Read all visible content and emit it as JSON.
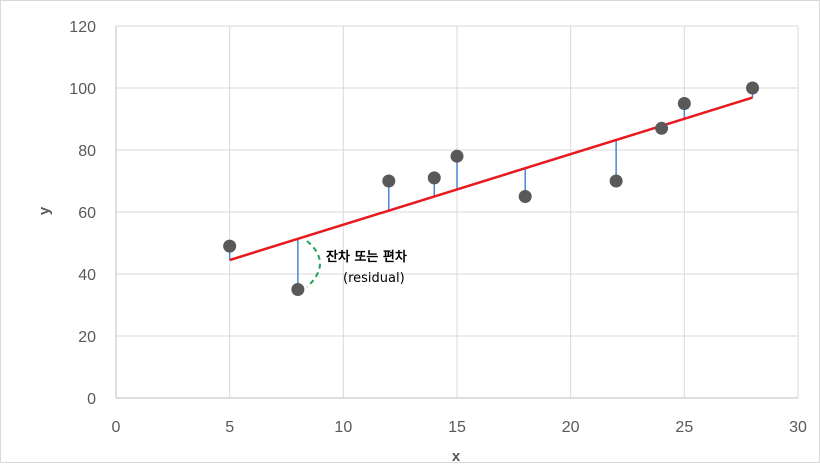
{
  "chart_data": {
    "type": "scatter",
    "title": "",
    "xlabel": "x",
    "ylabel": "y",
    "xlim": [
      0,
      30
    ],
    "ylim": [
      0,
      120
    ],
    "x_ticks": [
      0,
      5,
      10,
      15,
      20,
      25,
      30
    ],
    "y_ticks": [
      0,
      20,
      40,
      60,
      80,
      100,
      120
    ],
    "grid": true,
    "points": [
      {
        "x": 5,
        "y": 49
      },
      {
        "x": 8,
        "y": 35
      },
      {
        "x": 12,
        "y": 70
      },
      {
        "x": 14,
        "y": 71
      },
      {
        "x": 15,
        "y": 78
      },
      {
        "x": 18,
        "y": 65
      },
      {
        "x": 22,
        "y": 70
      },
      {
        "x": 24,
        "y": 87
      },
      {
        "x": 25,
        "y": 95
      },
      {
        "x": 28,
        "y": 100
      }
    ],
    "regression_line": {
      "x": [
        5,
        28
      ],
      "y": [
        44.5,
        96.9
      ]
    },
    "annotation": {
      "line1": "잔차 또는 편차",
      "line2": "(residual)"
    },
    "colors": {
      "points": "#595959",
      "regression": "#e8191f",
      "residual": "#4a86d8",
      "annotation_arc": "#1fa35a",
      "grid": "#d9d9d9",
      "axis": "#bfbfbf"
    }
  }
}
